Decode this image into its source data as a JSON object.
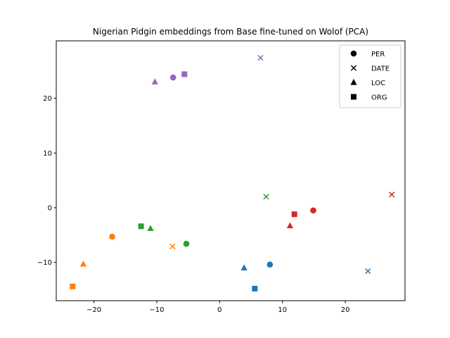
{
  "chart_data": {
    "type": "scatter",
    "title": "Nigerian Pidgin embeddings from Base fine-tuned on Wolof (PCA)",
    "xlabel": "",
    "ylabel": "",
    "xlim": [
      -26,
      29.5
    ],
    "ylim": [
      -17,
      30.5
    ],
    "xticks": [
      -20,
      -10,
      0,
      10,
      20
    ],
    "yticks": [
      -10,
      0,
      10,
      20
    ],
    "grid": false,
    "legend_position": "top-right",
    "legend": [
      {
        "label": "PER",
        "marker": "circle"
      },
      {
        "label": "DATE",
        "marker": "x"
      },
      {
        "label": "LOC",
        "marker": "triangle"
      },
      {
        "label": "ORG",
        "marker": "square"
      }
    ],
    "points": [
      {
        "x": 8.0,
        "y": -10.4,
        "marker": "circle",
        "color": "#1f77b4"
      },
      {
        "x": 23.6,
        "y": -11.6,
        "marker": "x",
        "color": "#1f77b4"
      },
      {
        "x": 3.9,
        "y": -11.0,
        "marker": "triangle",
        "color": "#1f77b4"
      },
      {
        "x": 5.6,
        "y": -14.8,
        "marker": "square",
        "color": "#1f77b4"
      },
      {
        "x": -17.1,
        "y": -5.3,
        "marker": "circle",
        "color": "#ff7f0e"
      },
      {
        "x": -7.5,
        "y": -7.1,
        "marker": "x",
        "color": "#ff7f0e"
      },
      {
        "x": -21.7,
        "y": -10.3,
        "marker": "triangle",
        "color": "#ff7f0e"
      },
      {
        "x": -23.4,
        "y": -14.4,
        "marker": "square",
        "color": "#ff7f0e"
      },
      {
        "x": -5.3,
        "y": -6.6,
        "marker": "circle",
        "color": "#2ca02c"
      },
      {
        "x": 7.4,
        "y": 2.0,
        "marker": "x",
        "color": "#2ca02c"
      },
      {
        "x": -11.0,
        "y": -3.8,
        "marker": "triangle",
        "color": "#2ca02c"
      },
      {
        "x": -12.5,
        "y": -3.4,
        "marker": "square",
        "color": "#2ca02c"
      },
      {
        "x": 14.9,
        "y": -0.5,
        "marker": "circle",
        "color": "#d62728"
      },
      {
        "x": 27.4,
        "y": 2.4,
        "marker": "x",
        "color": "#d62728"
      },
      {
        "x": 11.2,
        "y": -3.3,
        "marker": "triangle",
        "color": "#d62728"
      },
      {
        "x": 11.9,
        "y": -1.2,
        "marker": "square",
        "color": "#d62728"
      },
      {
        "x": -7.4,
        "y": 23.8,
        "marker": "circle",
        "color": "#9467bd"
      },
      {
        "x": 6.5,
        "y": 27.4,
        "marker": "x",
        "color": "#9467bd"
      },
      {
        "x": -10.3,
        "y": 23.0,
        "marker": "triangle",
        "color": "#9467bd"
      },
      {
        "x": -5.6,
        "y": 24.4,
        "marker": "square",
        "color": "#9467bd"
      }
    ]
  }
}
